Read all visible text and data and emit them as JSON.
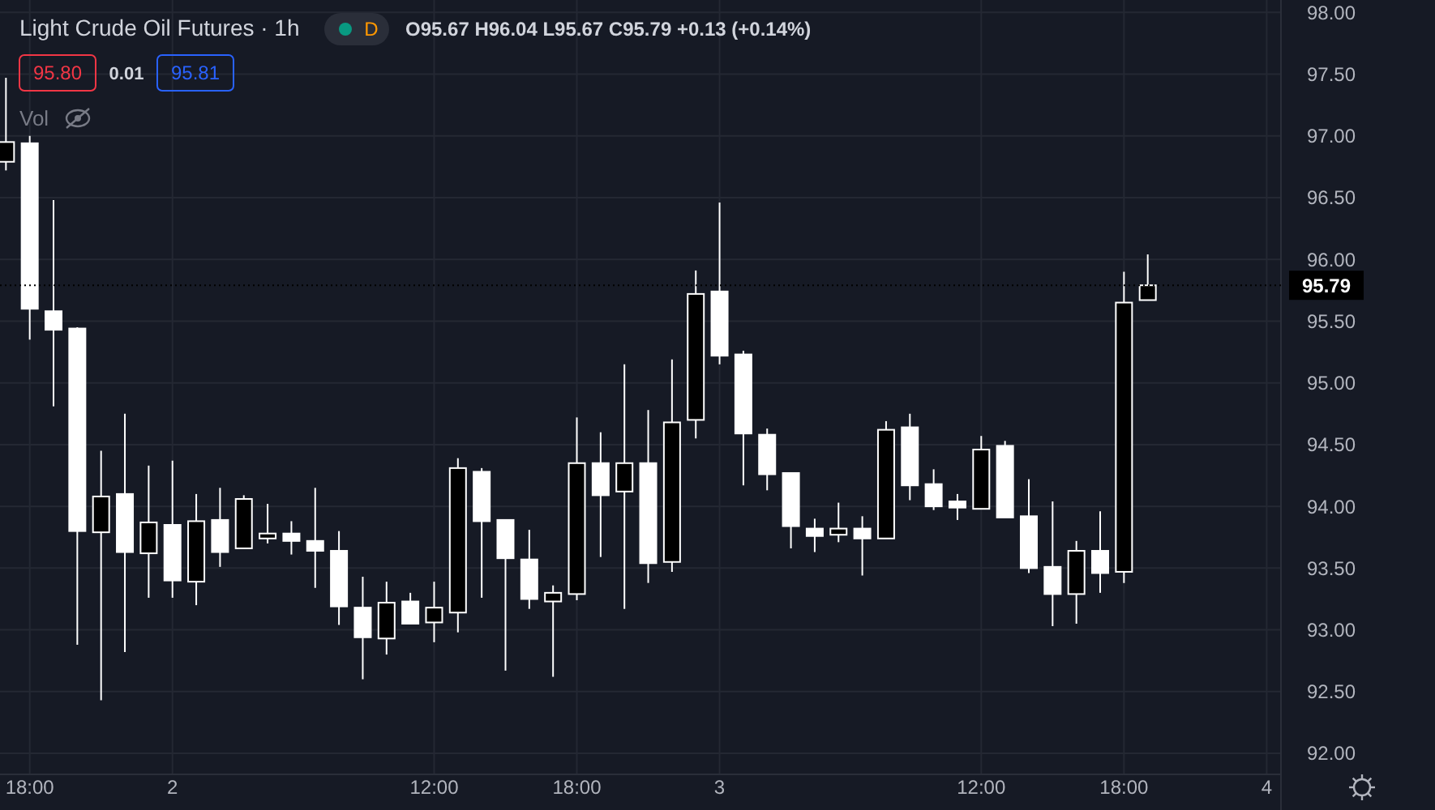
{
  "chart_data": {
    "type": "candlestick",
    "title": "Light Crude Oil Futures · 1h",
    "annotations": [
      "O95.67 H96.04 L95.67 C95.79 +0.13 (+0.14%)",
      "95.80",
      "0.01",
      "95.81",
      "Vol",
      "D"
    ],
    "categories": [
      null,
      "18:00",
      null,
      null,
      null,
      null,
      null,
      "2",
      null,
      null,
      null,
      null,
      null,
      null,
      null,
      null,
      null,
      null,
      "12:00",
      null,
      null,
      null,
      null,
      null,
      "18:00",
      null,
      null,
      null,
      null,
      null,
      "3",
      null,
      null,
      null,
      null,
      null,
      null,
      null,
      null,
      null,
      null,
      "12:00",
      null,
      null,
      null,
      null,
      null,
      "18:00",
      null,
      null,
      null,
      null,
      null,
      "4"
    ],
    "ohlc": [
      [
        96.79,
        97.47,
        96.72,
        96.95
      ],
      [
        96.94,
        97.0,
        95.35,
        95.6
      ],
      [
        95.58,
        96.48,
        94.81,
        95.43
      ],
      [
        95.44,
        95.45,
        92.88,
        93.8
      ],
      [
        93.79,
        94.45,
        92.43,
        94.08
      ],
      [
        94.1,
        94.75,
        92.82,
        93.63
      ],
      [
        93.62,
        94.33,
        93.26,
        93.87
      ],
      [
        93.85,
        94.37,
        93.26,
        93.4
      ],
      [
        93.39,
        94.1,
        93.2,
        93.88
      ],
      [
        93.89,
        94.15,
        93.51,
        93.63
      ],
      [
        93.66,
        94.09,
        93.66,
        94.06
      ],
      [
        93.74,
        94.02,
        93.7,
        93.78
      ],
      [
        93.78,
        93.88,
        93.61,
        93.72
      ],
      [
        93.72,
        94.15,
        93.34,
        93.64
      ],
      [
        93.64,
        93.8,
        93.04,
        93.19
      ],
      [
        93.18,
        93.43,
        92.6,
        92.94
      ],
      [
        92.93,
        93.39,
        92.8,
        93.22
      ],
      [
        93.23,
        93.3,
        93.05,
        93.05
      ],
      [
        93.06,
        93.39,
        92.9,
        93.18
      ],
      [
        93.14,
        94.39,
        92.98,
        94.31
      ],
      [
        94.28,
        94.31,
        93.26,
        93.88
      ],
      [
        93.89,
        93.89,
        92.67,
        93.58
      ],
      [
        93.57,
        93.81,
        93.17,
        93.25
      ],
      [
        93.23,
        93.36,
        92.62,
        93.3
      ],
      [
        93.29,
        94.72,
        93.24,
        94.35
      ],
      [
        94.35,
        94.6,
        93.59,
        94.09
      ],
      [
        94.12,
        95.15,
        93.17,
        94.35
      ],
      [
        94.35,
        94.78,
        93.38,
        93.54
      ],
      [
        93.55,
        95.19,
        93.47,
        94.68
      ],
      [
        94.7,
        95.91,
        94.55,
        95.72
      ],
      [
        95.74,
        96.46,
        95.15,
        95.22
      ],
      [
        95.23,
        95.26,
        94.17,
        94.59
      ],
      [
        94.58,
        94.63,
        94.13,
        94.26
      ],
      [
        94.27,
        94.27,
        93.66,
        93.84
      ],
      [
        93.82,
        93.9,
        93.63,
        93.76
      ],
      [
        93.77,
        94.03,
        93.71,
        93.82
      ],
      [
        93.82,
        93.92,
        93.44,
        93.74
      ],
      [
        93.74,
        94.69,
        93.74,
        94.62
      ],
      [
        94.64,
        94.75,
        94.05,
        94.17
      ],
      [
        94.18,
        94.3,
        93.97,
        94.0
      ],
      [
        94.04,
        94.1,
        93.89,
        93.99
      ],
      [
        93.98,
        94.57,
        93.98,
        94.46
      ],
      [
        94.49,
        94.53,
        93.91,
        93.91
      ],
      [
        93.92,
        94.22,
        93.46,
        93.5
      ],
      [
        93.51,
        94.04,
        93.03,
        93.29
      ],
      [
        93.29,
        93.72,
        93.05,
        93.64
      ],
      [
        93.64,
        93.96,
        93.3,
        93.46
      ],
      [
        93.47,
        95.9,
        93.38,
        95.65
      ],
      [
        95.67,
        96.04,
        95.67,
        95.79
      ],
      null,
      null,
      null,
      null,
      null
    ],
    "colors": [
      "#000000",
      "#ffffff",
      "#ffffff",
      "#ffffff",
      "#000000",
      "#ffffff",
      "#000000",
      "#ffffff",
      "#000000",
      "#ffffff",
      "#000000",
      "#000000",
      "#ffffff",
      "#ffffff",
      "#ffffff",
      "#ffffff",
      "#000000",
      "#ffffff",
      "#000000",
      "#000000",
      "#ffffff",
      "#ffffff",
      "#ffffff",
      "#000000",
      "#000000",
      "#ffffff",
      "#000000",
      "#ffffff",
      "#000000",
      "#000000",
      "#ffffff",
      "#ffffff",
      "#ffffff",
      "#ffffff",
      "#ffffff",
      "#000000",
      "#ffffff",
      "#000000",
      "#ffffff",
      "#ffffff",
      "#ffffff",
      "#000000",
      "#ffffff",
      "#ffffff",
      "#ffffff",
      "#000000",
      "#ffffff",
      "#000000",
      "#000000",
      null,
      null,
      null,
      null,
      null
    ],
    "ylim": [
      91.83,
      98.1
    ],
    "yticks": [
      {
        "value": 92,
        "label": "92.00"
      },
      {
        "value": 92.5,
        "label": "92.50"
      },
      {
        "value": 93,
        "label": "93.00"
      },
      {
        "value": 93.5,
        "label": "93.50"
      },
      {
        "value": 94,
        "label": "94.00"
      },
      {
        "value": 94.5,
        "label": "94.50"
      },
      {
        "value": 95,
        "label": "95.00"
      },
      {
        "value": 95.5,
        "label": "95.50"
      },
      {
        "value": 96,
        "label": "96.00"
      },
      {
        "value": 96.5,
        "label": "96.50"
      },
      {
        "value": 97,
        "label": "97.00"
      },
      {
        "value": 97.5,
        "label": "97.50"
      },
      {
        "value": 98,
        "label": "98.00"
      }
    ],
    "ref_lines": [
      {
        "axis": "y",
        "value": 95.79,
        "label": "95.79",
        "color": "#000000",
        "line_style": "dotted"
      }
    ],
    "grid": true
  }
}
